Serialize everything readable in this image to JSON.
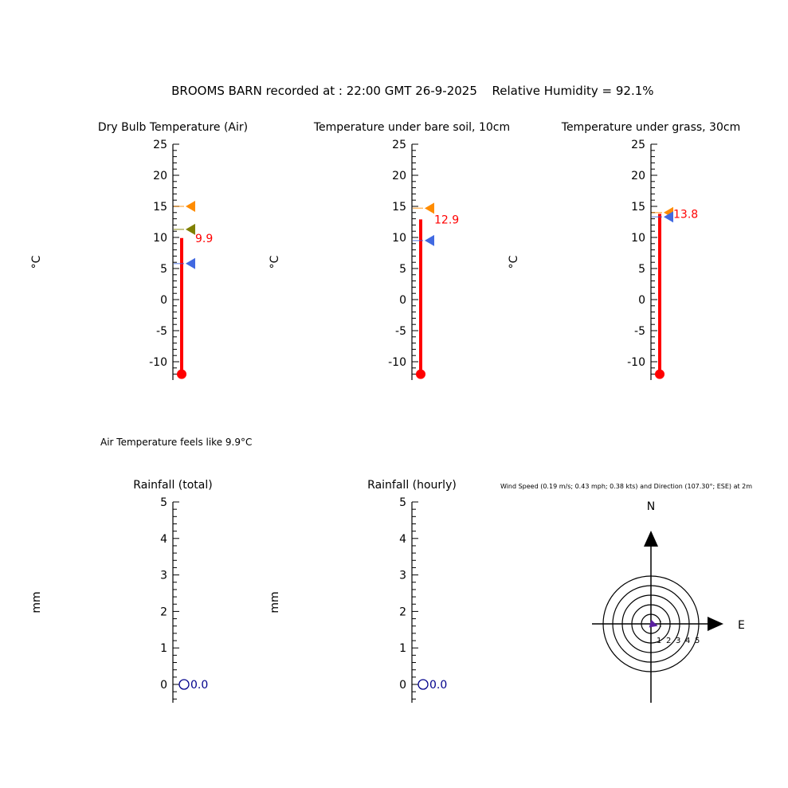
{
  "header": {
    "station": "BROOMS BARN recorded at : 22:00 GMT  26-9-2025",
    "humidity": "Relative Humidity = 92.1%"
  },
  "feels_like": "Air Temperature feels like 9.9°C",
  "wind": {
    "caption": "Wind Speed (0.19 m/s; 0.43 mph; 0.38 kts) and Direction (107.30°; ESE) at 2m",
    "north_label": "N",
    "east_label": "E",
    "ring_labels": [
      "1",
      "2",
      "3",
      "4",
      "5"
    ],
    "speed_ms": 0.19,
    "direction_deg": 107.3,
    "arrow_color": "#000000",
    "wedge_color": "#5a1fa0"
  },
  "chart_data": [
    {
      "type": "bar",
      "title": "Dry Bulb Temperature (Air)",
      "ylabel": "°C",
      "ylim": [
        -12,
        25
      ],
      "ticks": [
        "25",
        "20",
        "15",
        "10",
        "5",
        "0",
        "-5",
        "-10"
      ],
      "value": 9.9,
      "value_label": "9.9",
      "markers": [
        {
          "value": 15.0,
          "color": "#ff8c00"
        },
        {
          "value": 11.3,
          "color": "#808000"
        },
        {
          "value": 5.8,
          "color": "#4169e1"
        }
      ],
      "bar_color": "#ff0000"
    },
    {
      "type": "bar",
      "title": "Temperature under bare soil, 10cm",
      "ylabel": "°C",
      "ylim": [
        -12,
        25
      ],
      "ticks": [
        "25",
        "20",
        "15",
        "10",
        "5",
        "0",
        "-5",
        "-10"
      ],
      "value": 12.9,
      "value_label": "12.9",
      "markers": [
        {
          "value": 14.7,
          "color": "#ff8c00"
        },
        {
          "value": 9.5,
          "color": "#4169e1"
        }
      ],
      "bar_color": "#ff0000"
    },
    {
      "type": "bar",
      "title": "Temperature under grass, 30cm",
      "ylabel": "°C",
      "ylim": [
        -12,
        25
      ],
      "ticks": [
        "25",
        "20",
        "15",
        "10",
        "5",
        "0",
        "-5",
        "-10"
      ],
      "value": 13.8,
      "value_label": "13.8",
      "markers": [
        {
          "value": 14.0,
          "color": "#ff8c00"
        },
        {
          "value": 13.3,
          "color": "#4169e1"
        }
      ],
      "bar_color": "#ff0000"
    },
    {
      "type": "bar",
      "title": "Rainfall (total)",
      "ylabel": "mm",
      "ylim": [
        -0.5,
        5
      ],
      "ticks": [
        "5",
        "4",
        "3",
        "2",
        "1",
        "0"
      ],
      "value": 0.0,
      "value_label": "0.0",
      "value_color": "#00008b"
    },
    {
      "type": "bar",
      "title": "Rainfall (hourly)",
      "ylabel": "mm",
      "ylim": [
        -0.5,
        5
      ],
      "ticks": [
        "5",
        "4",
        "3",
        "2",
        "1",
        "0"
      ],
      "value": 0.0,
      "value_label": "0.0",
      "value_color": "#00008b"
    }
  ]
}
